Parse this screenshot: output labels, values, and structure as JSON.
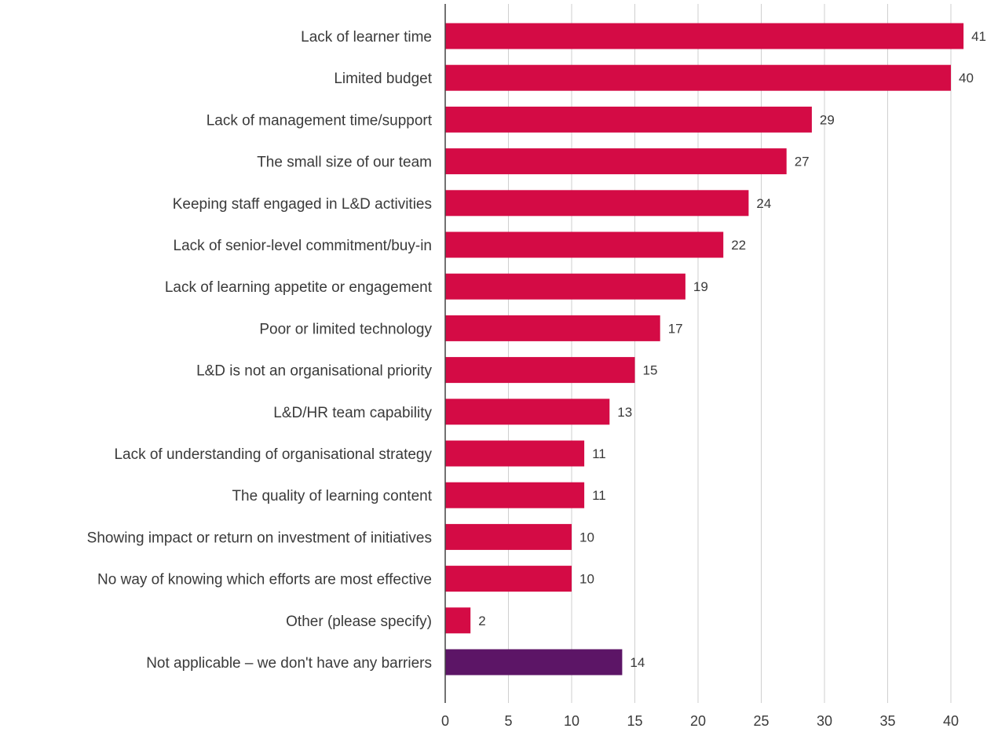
{
  "chart_data": {
    "type": "bar",
    "orientation": "horizontal",
    "title": "",
    "xlabel": "",
    "ylabel": "",
    "xlim": [
      0,
      40
    ],
    "x_ticks": [
      0,
      5,
      10,
      15,
      20,
      25,
      30,
      35,
      40
    ],
    "grid": "vertical",
    "categories": [
      "Lack of learner time",
      "Limited budget",
      "Lack of management time/support",
      "The small size of our team",
      "Keeping staff engaged in L&D activities",
      "Lack of senior-level commitment/buy-in",
      "Lack of learning appetite or engagement",
      "Poor or limited technology",
      "L&D is not an organisational priority",
      "L&D/HR team capability",
      "Lack of understanding of organisational strategy",
      "The quality of learning content",
      "Showing impact or return on investment of initiatives",
      "No way of knowing which efforts are most effective",
      "Other (please specify)",
      "Not applicable – we don't have any barriers"
    ],
    "values": [
      41,
      40,
      29,
      27,
      24,
      22,
      19,
      17,
      15,
      13,
      11,
      11,
      10,
      10,
      2,
      14
    ],
    "data_labels": [
      "41",
      "40",
      "29",
      "27",
      "24",
      "22",
      "19",
      "17",
      "15",
      "13",
      "11",
      "11",
      "10",
      "10",
      "2",
      "14"
    ],
    "colors": {
      "bar": "#d40b45",
      "highlight_bar": "#5c1566",
      "highlight_index": 15
    }
  }
}
